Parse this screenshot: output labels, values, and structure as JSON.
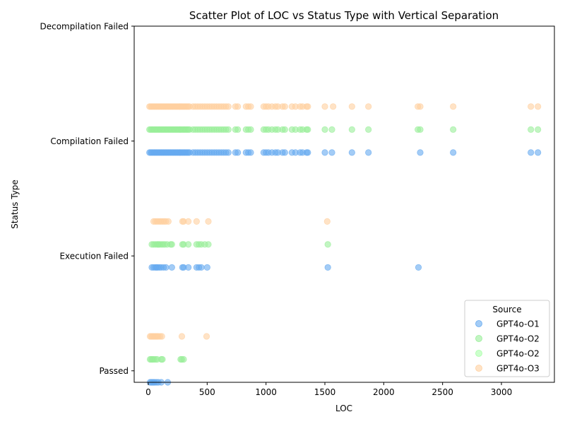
{
  "chart_data": {
    "type": "scatter",
    "title": "Scatter Plot of LOC vs Status Type with Vertical Separation",
    "xlabel": "LOC",
    "ylabel": "Status Type",
    "xlim": [
      -120,
      3450
    ],
    "ylim": [
      -0.1,
      3.0
    ],
    "x_ticks": [
      0,
      500,
      1000,
      1500,
      2000,
      2500,
      3000
    ],
    "y_categories": [
      "Passed",
      "Execution Failed",
      "Compilation Failed",
      "Decompilation Failed"
    ],
    "grid": false,
    "legend": {
      "title": "Source",
      "placement": "lower right"
    },
    "series": [
      {
        "name": "GPT4o-O1",
        "color": "#66aaf0",
        "points": [
          {
            "status": "Passed",
            "loc": [
              15,
              25,
              35,
              45,
              55,
              70,
              85,
              110,
              165
            ]
          },
          {
            "status": "Execution Failed",
            "loc": [
              30,
              45,
              60,
              70,
              80,
              95,
              110,
              130,
              150,
              200,
              290,
              300,
              340,
              410,
              430,
              450,
              500,
              1525,
              2295
            ]
          },
          {
            "status": "Compilation Failed",
            "loc": [
              10,
              20,
              30,
              40,
              50,
              60,
              70,
              80,
              90,
              100,
              110,
              120,
              130,
              140,
              150,
              160,
              170,
              180,
              190,
              200,
              210,
              220,
              230,
              240,
              250,
              260,
              270,
              280,
              290,
              300,
              310,
              320,
              330,
              340,
              350,
              380,
              400,
              420,
              440,
              460,
              480,
              500,
              520,
              540,
              560,
              580,
              600,
              620,
              640,
              660,
              680,
              740,
              760,
              830,
              850,
              870,
              980,
              1000,
              1020,
              1050,
              1080,
              1100,
              1140,
              1160,
              1220,
              1250,
              1290,
              1310,
              1345,
              1355,
              1500,
              1560,
              1730,
              1870,
              2310,
              2590,
              3250,
              3310
            ]
          }
        ]
      },
      {
        "name": "GPT4o-O2",
        "color": "#99ee99",
        "points": [
          {
            "status": "Passed",
            "loc": [
              15,
              25,
              35,
              45,
              60,
              75,
              110,
              120,
              275,
              285,
              300
            ]
          },
          {
            "status": "Execution Failed",
            "loc": [
              30,
              45,
              60,
              75,
              85,
              95,
              110,
              125,
              140,
              160,
              190,
              200,
              290,
              300,
              340,
              410,
              430,
              450,
              480,
              510,
              1525
            ]
          },
          {
            "status": "Compilation Failed",
            "loc": [
              10,
              20,
              30,
              40,
              50,
              60,
              70,
              80,
              90,
              100,
              110,
              120,
              130,
              140,
              150,
              160,
              170,
              180,
              190,
              200,
              210,
              220,
              230,
              240,
              250,
              260,
              270,
              280,
              290,
              300,
              310,
              320,
              330,
              340,
              350,
              380,
              400,
              420,
              440,
              460,
              480,
              500,
              520,
              540,
              560,
              580,
              600,
              620,
              640,
              660,
              680,
              740,
              760,
              830,
              850,
              870,
              980,
              1000,
              1020,
              1050,
              1080,
              1100,
              1140,
              1160,
              1220,
              1250,
              1290,
              1310,
              1345,
              1355,
              1500,
              1560,
              1730,
              1870,
              2290,
              2310,
              2590,
              3250,
              3310
            ]
          }
        ]
      },
      {
        "name": "GPT4o-O2",
        "color": "#aaffaa",
        "points": []
      },
      {
        "name": "GPT4o-O3",
        "color": "#ffd0a0",
        "points": [
          {
            "status": "Passed",
            "loc": [
              15,
              25,
              35,
              45,
              55,
              65,
              75,
              85,
              100,
              115,
              285,
              495
            ]
          },
          {
            "status": "Execution Failed",
            "loc": [
              45,
              60,
              75,
              90,
              105,
              120,
              135,
              150,
              170,
              290,
              300,
              340,
              410,
              510,
              1520
            ]
          },
          {
            "status": "Compilation Failed",
            "loc": [
              10,
              20,
              30,
              40,
              50,
              60,
              70,
              80,
              90,
              100,
              110,
              120,
              130,
              140,
              150,
              160,
              170,
              180,
              190,
              200,
              210,
              220,
              230,
              240,
              250,
              260,
              270,
              280,
              290,
              300,
              310,
              320,
              330,
              340,
              350,
              380,
              400,
              420,
              440,
              460,
              480,
              500,
              520,
              540,
              560,
              580,
              600,
              620,
              640,
              660,
              680,
              740,
              760,
              830,
              850,
              870,
              980,
              1000,
              1020,
              1050,
              1080,
              1100,
              1140,
              1160,
              1220,
              1250,
              1290,
              1310,
              1345,
              1355,
              1500,
              1570,
              1730,
              1870,
              2290,
              2310,
              2590,
              3250,
              3310
            ]
          }
        ]
      }
    ]
  }
}
